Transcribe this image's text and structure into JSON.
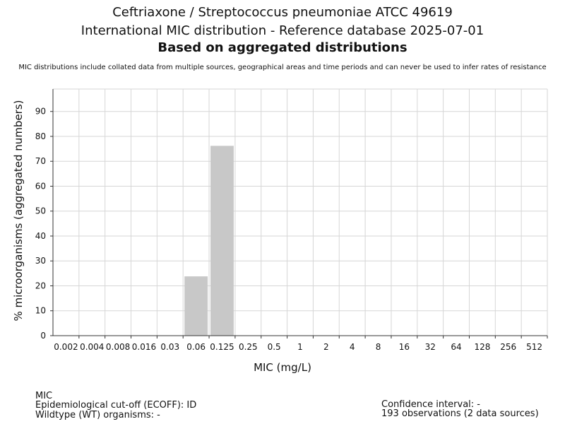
{
  "header": {
    "title_line1": "Ceftriaxone / Streptococcus pneumoniae ATCC 49619",
    "title_line2": "International MIC distribution - Reference database 2025-07-01",
    "title_line3": "Based on aggregated distributions",
    "note": "MIC distributions include collated data from multiple sources, geographical areas and time periods and can never be used to infer rates of resistance"
  },
  "chart_data": {
    "type": "bar",
    "categories": [
      "0.002",
      "0.004",
      "0.008",
      "0.016",
      "0.03",
      "0.06",
      "0.125",
      "0.25",
      "0.5",
      "1",
      "2",
      "4",
      "8",
      "16",
      "32",
      "64",
      "128",
      "256",
      "512"
    ],
    "values": [
      0,
      0,
      0,
      0,
      0,
      23.8,
      76.2,
      0,
      0,
      0,
      0,
      0,
      0,
      0,
      0,
      0,
      0,
      0,
      0
    ],
    "ylim": [
      0,
      99
    ],
    "yticks": [
      0,
      10,
      20,
      30,
      40,
      50,
      60,
      70,
      80,
      90
    ],
    "xlabel": "MIC (mg/L)",
    "ylabel": "% microorganisms (aggregated numbers)",
    "grid": true,
    "bar_color": "#c8c8c8"
  },
  "footer": {
    "mic_label": "MIC",
    "ecoff": "Epidemiological cut-off (ECOFF): ID",
    "wildtype": "Wildtype (WT) organisms:  -",
    "confidence": "Confidence interval: -",
    "observations": "193 observations (2 data sources)"
  }
}
